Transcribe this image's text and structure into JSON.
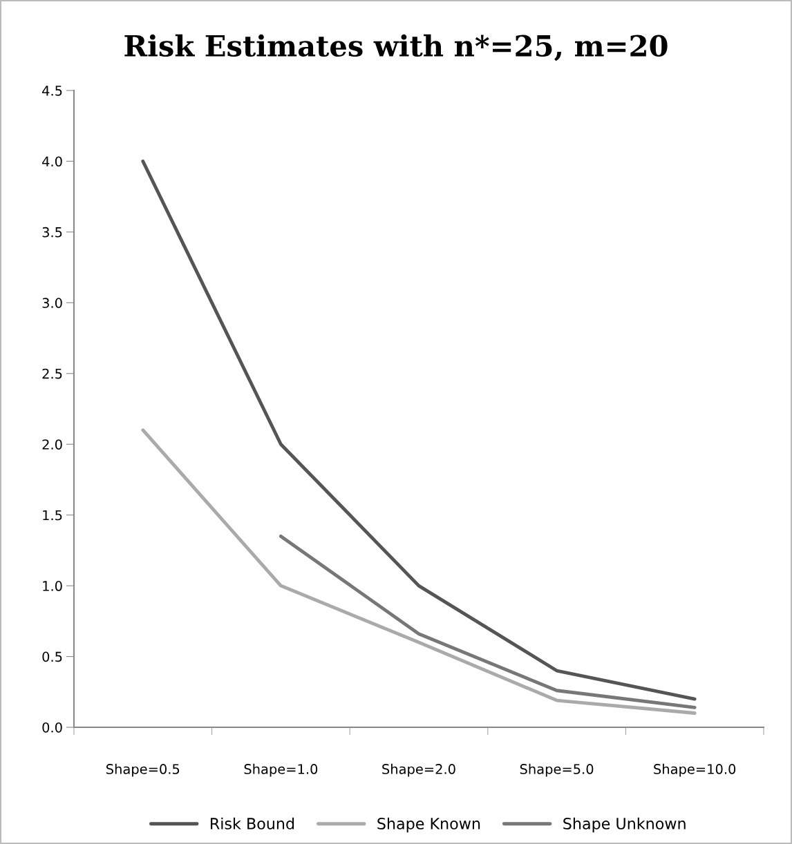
{
  "chart_data": {
    "type": "line",
    "title": "Risk Estimates with n*=25, m=20",
    "categories": [
      "Shape=0.5",
      "Shape=1.0",
      "Shape=2.0",
      "Shape=5.0",
      "Shape=10.0"
    ],
    "series": [
      {
        "name": "Risk Bound",
        "color": "#555555",
        "values": [
          4.0,
          2.0,
          1.0,
          0.4,
          0.2
        ]
      },
      {
        "name": "Shape Known",
        "color": "#aaaaaa",
        "values": [
          2.1,
          1.0,
          0.6,
          0.19,
          0.1
        ]
      },
      {
        "name": "Shape Unknown",
        "color": "#777777",
        "values": [
          null,
          1.35,
          0.66,
          0.26,
          0.14
        ]
      }
    ],
    "ylim": [
      0,
      4.5
    ],
    "yticks": [
      {
        "value": 0,
        "label": "0.0"
      },
      {
        "value": 0.5,
        "label": "0.5"
      },
      {
        "value": 1,
        "label": "1.0"
      },
      {
        "value": 1.5,
        "label": "1.5"
      },
      {
        "value": 2,
        "label": "2.0"
      },
      {
        "value": 2.5,
        "label": "2.5"
      },
      {
        "value": 3,
        "label": "3.0"
      },
      {
        "value": 3.5,
        "label": "3.5"
      },
      {
        "value": 4,
        "label": "4.0"
      },
      {
        "value": 4.5,
        "label": "4.5"
      }
    ],
    "grid": false,
    "legend": "bottom",
    "marker": "none",
    "line_style": "solid"
  }
}
